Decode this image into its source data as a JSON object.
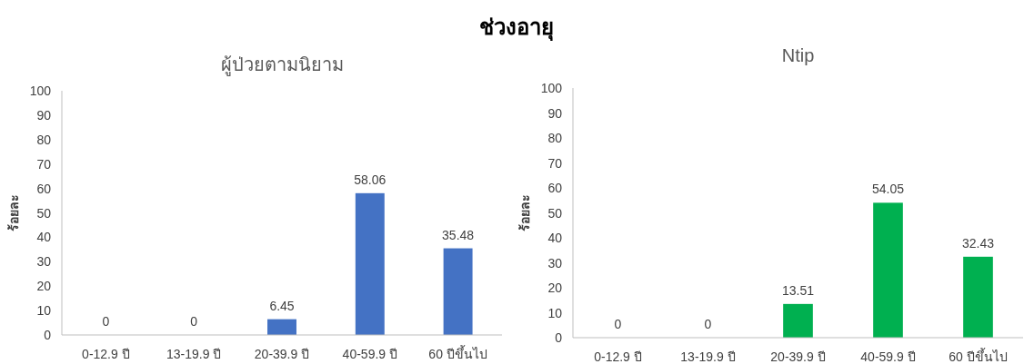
{
  "chart_data": [
    {
      "type": "bar",
      "title": "ช่วงอายุ",
      "subtitle": "ผู้ป่วยตามนิยาม",
      "ylabel": "ร้อยละ",
      "categories": [
        "0-12.9 ปี",
        "13-19.9 ปี",
        "20-39.9 ปี",
        "40-59.9 ปี",
        "60 ปีขึ้นไป"
      ],
      "values": [
        0,
        0,
        6.45,
        58.06,
        35.48
      ],
      "color": "#4472c4",
      "ylim": [
        0,
        100
      ],
      "yticks": [
        0,
        10,
        20,
        30,
        40,
        50,
        60,
        70,
        80,
        90,
        100
      ],
      "data_labels": true
    },
    {
      "type": "bar",
      "title": "Ntip",
      "ylabel": "ร้อยละ",
      "categories": [
        "0-12.9 ปี",
        "13-19.9 ปี",
        "20-39.9 ปี",
        "40-59.9 ปี",
        "60 ปีขึ้นไป"
      ],
      "values": [
        0,
        0,
        13.51,
        54.05,
        32.43
      ],
      "color": "#00b050",
      "ylim": [
        0,
        100
      ],
      "yticks": [
        0,
        10,
        20,
        30,
        40,
        50,
        60,
        70,
        80,
        90,
        100
      ],
      "data_labels": true
    }
  ]
}
